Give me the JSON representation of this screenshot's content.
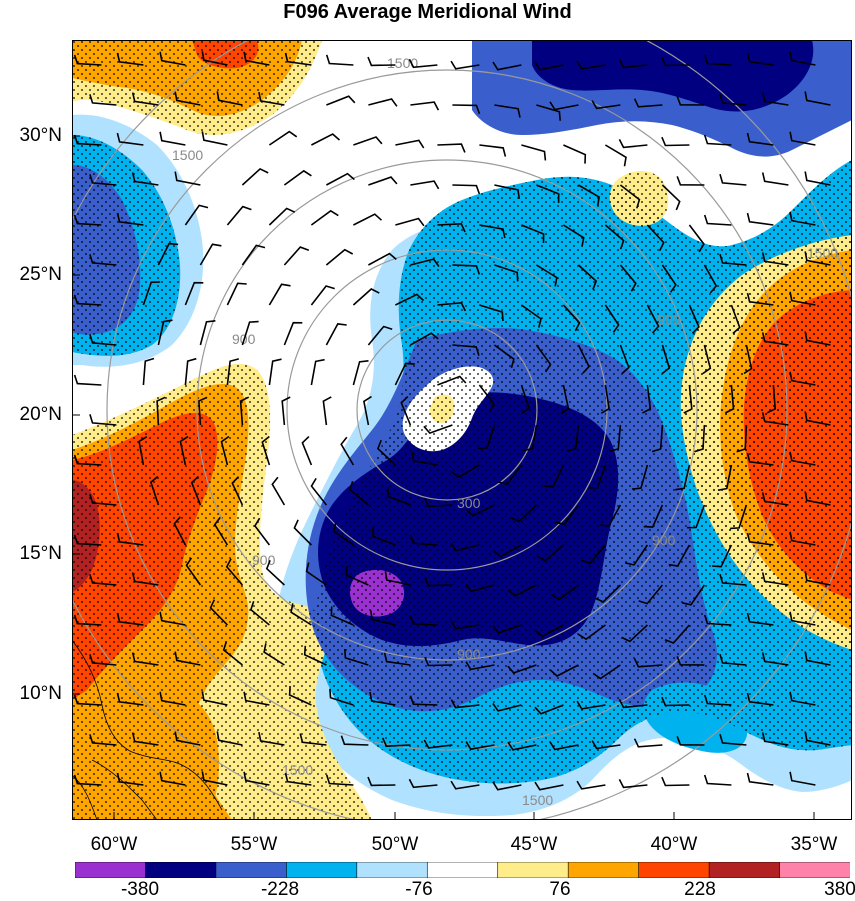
{
  "title": "F096 Average Meridional Wind",
  "axes": {
    "latitude_ticks": [
      "30°N",
      "25°N",
      "20°N",
      "15°N",
      "10°N"
    ],
    "longitude_ticks": [
      "60°W",
      "55°W",
      "50°W",
      "45°W",
      "40°W",
      "35°W"
    ]
  },
  "range_rings": {
    "labels": [
      "300",
      "900",
      "900",
      "900",
      "900",
      "900",
      "1500",
      "1500",
      "1500",
      "1500",
      "1500"
    ]
  },
  "colorbar": {
    "labels": [
      "-380",
      "-228",
      "-76",
      "76",
      "228",
      "380"
    ],
    "colors": [
      "#9b30d0",
      "#000080",
      "#3a5fcd",
      "#00b2ee",
      "#b0e2ff",
      "#ffffff",
      "#ffec8b",
      "#ffa500",
      "#ff4500",
      "#b22222",
      "#ff82ab"
    ]
  },
  "fill_colors": {
    "deep_purple": "#9b30d0",
    "navy": "#000080",
    "royal_blue": "#3a5fcd",
    "sky_blue": "#00b2ee",
    "light_blue": "#b0e2ff",
    "white": "#ffffff",
    "light_yellow": "#ffec8b",
    "orange": "#ffa500",
    "orange_red": "#ff4500",
    "firebrick": "#b22222"
  },
  "overlays": {
    "stippling": "significance dots",
    "wind_barbs": "black barbs",
    "ring_color": "#9a9a9a"
  }
}
